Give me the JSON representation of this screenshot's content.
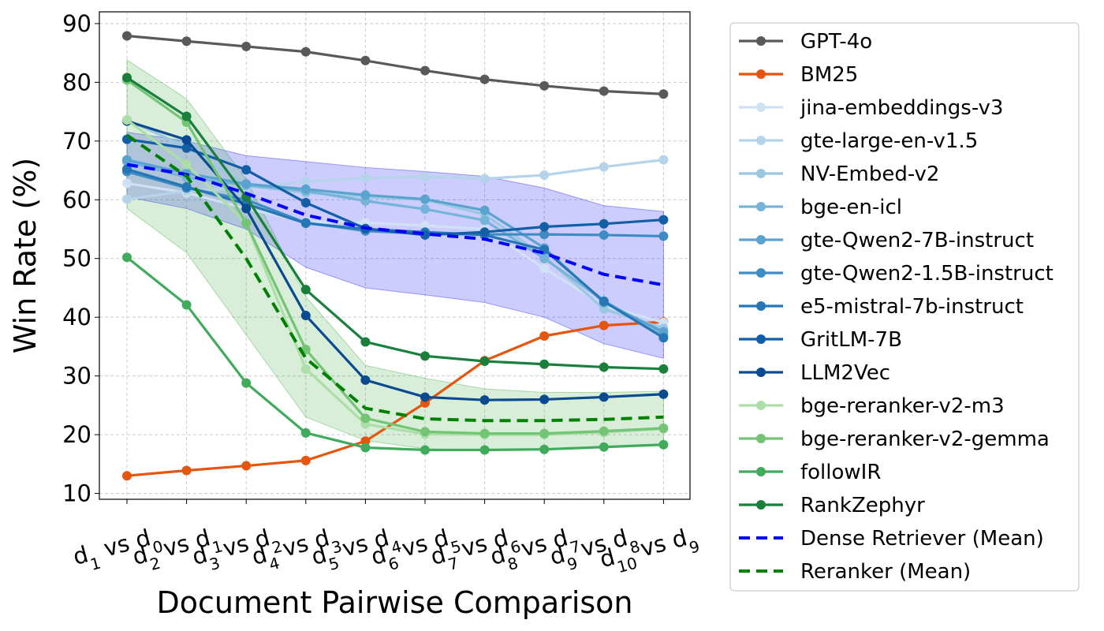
{
  "chart_data": {
    "type": "line",
    "title": "",
    "xlabel": "Document Pairwise Comparison",
    "ylabel": "Win Rate (%)",
    "ylim": [
      9,
      92
    ],
    "yticks": [
      10,
      20,
      30,
      40,
      50,
      60,
      70,
      80,
      90
    ],
    "categories": [
      {
        "a": "d",
        "a_sub": "1",
        "vs": "vs",
        "b": "d",
        "b_sub": "0"
      },
      {
        "a": "d",
        "a_sub": "2",
        "vs": "vs",
        "b": "d",
        "b_sub": "1"
      },
      {
        "a": "d",
        "a_sub": "3",
        "vs": "vs",
        "b": "d",
        "b_sub": "2"
      },
      {
        "a": "d",
        "a_sub": "4",
        "vs": "vs",
        "b": "d",
        "b_sub": "3"
      },
      {
        "a": "d",
        "a_sub": "5",
        "vs": "vs",
        "b": "d",
        "b_sub": "4"
      },
      {
        "a": "d",
        "a_sub": "6",
        "vs": "vs",
        "b": "d",
        "b_sub": "5"
      },
      {
        "a": "d",
        "a_sub": "7",
        "vs": "vs",
        "b": "d",
        "b_sub": "6"
      },
      {
        "a": "d",
        "a_sub": "8",
        "vs": "vs",
        "b": "d",
        "b_sub": "7"
      },
      {
        "a": "d",
        "a_sub": "9",
        "vs": "vs",
        "b": "d",
        "b_sub": "8"
      },
      {
        "a": "d",
        "a_sub": "10",
        "vs": "vs",
        "b": "d",
        "b_sub": "9"
      }
    ],
    "grid": true,
    "legend_position": "outside-right",
    "series": [
      {
        "name": "GPT-4o",
        "color": "#595959",
        "dash": false,
        "values": [
          87.9,
          87.0,
          86.1,
          85.2,
          83.7,
          82.0,
          80.5,
          79.4,
          78.5,
          78.0
        ]
      },
      {
        "name": "BM25",
        "color": "#e6550d",
        "dash": false,
        "values": [
          13.0,
          13.9,
          14.7,
          15.6,
          18.9,
          25.4,
          32.6,
          36.8,
          38.6,
          39.2
        ]
      },
      {
        "name": "jina-embeddings-v3",
        "color": "#cfe1f2",
        "dash": false,
        "values": [
          62.8,
          61.2,
          58.5,
          56.3,
          56.1,
          55.6,
          55.0,
          48.3,
          42.0,
          39.1
        ]
      },
      {
        "name": "gte-large-en-v1.5",
        "color": "#b5d4e9",
        "dash": false,
        "values": [
          60.1,
          61.5,
          62.0,
          63.1,
          63.7,
          63.9,
          63.6,
          64.2,
          65.6,
          66.8
        ]
      },
      {
        "name": "NV-Embed-v2",
        "color": "#9ac8e0",
        "dash": false,
        "values": [
          73.6,
          69.0,
          62.4,
          61.2,
          60.5,
          60.0,
          57.5,
          50.3,
          41.4,
          38.1
        ]
      },
      {
        "name": "bge-en-icl",
        "color": "#75b4d8",
        "dash": false,
        "values": [
          66.5,
          63.8,
          62.5,
          61.5,
          59.8,
          58.4,
          56.5,
          50.0,
          42.8,
          37.0
        ]
      },
      {
        "name": "gte-Qwen2-7B-instruct",
        "color": "#5ba3cf",
        "dash": false,
        "values": [
          66.8,
          64.5,
          62.7,
          61.8,
          60.8,
          60.1,
          58.2,
          51.8,
          42.5,
          37.5
        ]
      },
      {
        "name": "gte-Qwen2-1.5B-instruct",
        "color": "#3d8dc4",
        "dash": false,
        "values": [
          64.8,
          62.0,
          60.0,
          56.1,
          54.7,
          54.2,
          54.1,
          54.1,
          54.0,
          53.8
        ]
      },
      {
        "name": "e5-mistral-7b-instruct",
        "color": "#2676b7",
        "dash": false,
        "values": [
          65.2,
          62.2,
          59.3,
          56.0,
          55.0,
          54.5,
          54.0,
          51.5,
          42.7,
          36.5
        ]
      },
      {
        "name": "GritLM-7B",
        "color": "#125fa7",
        "dash": false,
        "values": [
          70.3,
          68.8,
          65.1,
          59.5,
          55.1,
          54.0,
          54.5,
          55.4,
          55.9,
          56.6
        ]
      },
      {
        "name": "LLM2Vec",
        "color": "#0a4a90",
        "dash": false,
        "values": [
          73.4,
          70.2,
          58.5,
          40.3,
          29.3,
          26.4,
          25.9,
          26.0,
          26.4,
          26.9
        ]
      },
      {
        "name": "bge-reranker-v2-m3",
        "color": "#addea7",
        "dash": false,
        "values": [
          73.6,
          66.0,
          56.0,
          31.2,
          21.8,
          20.1,
          20.0,
          20.0,
          20.4,
          21.0
        ]
      },
      {
        "name": "bge-reranker-v2-gemma",
        "color": "#74c476",
        "dash": false,
        "values": [
          80.4,
          73.2,
          56.0,
          34.5,
          22.8,
          20.5,
          20.2,
          20.2,
          20.6,
          21.1
        ]
      },
      {
        "name": "followIR",
        "color": "#41ab5d",
        "dash": false,
        "values": [
          50.2,
          42.1,
          28.8,
          20.3,
          17.8,
          17.4,
          17.4,
          17.5,
          17.9,
          18.3
        ]
      },
      {
        "name": "RankZephyr",
        "color": "#1a7f3c",
        "dash": false,
        "values": [
          80.8,
          74.2,
          60.5,
          44.7,
          35.8,
          33.4,
          32.5,
          32.0,
          31.5,
          31.2
        ]
      },
      {
        "name": "Dense Retriever (Mean)",
        "color": "#0000ff",
        "dash": true,
        "values": [
          66.0,
          64.3,
          61.1,
          57.4,
          55.2,
          54.2,
          53.3,
          50.9,
          47.3,
          45.5
        ]
      },
      {
        "name": "Reranker (Mean)",
        "color": "#008000",
        "dash": true,
        "values": [
          71.0,
          64.0,
          50.0,
          33.0,
          24.5,
          22.7,
          22.4,
          22.4,
          22.6,
          23.0
        ]
      }
    ],
    "bands": [
      {
        "name": "Dense Retriever (Std)",
        "color": "#0000ff",
        "opacity": 0.2,
        "lower": [
          60.5,
          58.5,
          55.0,
          48.5,
          45.0,
          43.8,
          42.5,
          40.0,
          35.5,
          33.0
        ],
        "upper": [
          71.5,
          70.0,
          67.5,
          66.5,
          65.5,
          64.8,
          64.0,
          62.0,
          59.0,
          58.0
        ]
      },
      {
        "name": "Reranker (Std)",
        "color": "#2ca02c",
        "opacity": 0.18,
        "lower": [
          58.5,
          51.0,
          37.0,
          23.0,
          19.0,
          17.6,
          17.4,
          17.6,
          17.8,
          18.3
        ],
        "upper": [
          83.8,
          77.2,
          63.5,
          43.5,
          31.8,
          29.6,
          27.8,
          27.2,
          27.2,
          27.4
        ]
      }
    ]
  }
}
